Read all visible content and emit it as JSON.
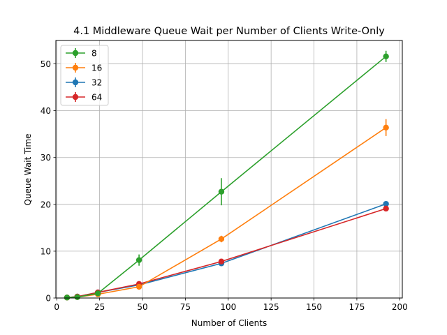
{
  "chart_data": {
    "type": "line",
    "title": "4.1 Middleware Queue Wait per Number of Clients Write-Only",
    "xlabel": "Number of Clients",
    "ylabel": "Queue Wait Time",
    "xlim": [
      -0.5,
      201.5
    ],
    "ylim": [
      0,
      55
    ],
    "xticks": [
      0,
      25,
      50,
      75,
      100,
      125,
      150,
      175,
      200
    ],
    "yticks": [
      0,
      10,
      20,
      30,
      40,
      50
    ],
    "grid": true,
    "legend_position": "upper-left",
    "x": [
      6,
      12,
      24,
      48,
      96,
      192
    ],
    "series": [
      {
        "name": "8",
        "color": "#2ca02c",
        "values": [
          0.1,
          0.2,
          1.0,
          8.1,
          22.7,
          51.6
        ],
        "errors": [
          0.1,
          0.1,
          0.3,
          1.2,
          2.9,
          1.2
        ]
      },
      {
        "name": "16",
        "color": "#ff7f0e",
        "values": [
          0.1,
          0.2,
          0.8,
          2.4,
          12.6,
          36.4
        ],
        "errors": [
          0.05,
          0.1,
          0.2,
          0.5,
          0.7,
          1.8
        ]
      },
      {
        "name": "32",
        "color": "#1f77b4",
        "values": [
          0.1,
          0.3,
          1.2,
          2.8,
          7.4,
          20.1
        ],
        "errors": [
          0.05,
          0.05,
          0.1,
          0.2,
          0.3,
          0.4
        ]
      },
      {
        "name": "64",
        "color": "#d62728",
        "values": [
          0.1,
          0.3,
          1.2,
          3.0,
          7.8,
          19.1
        ],
        "errors": [
          0.05,
          0.05,
          0.1,
          0.2,
          0.3,
          0.4
        ]
      }
    ]
  }
}
